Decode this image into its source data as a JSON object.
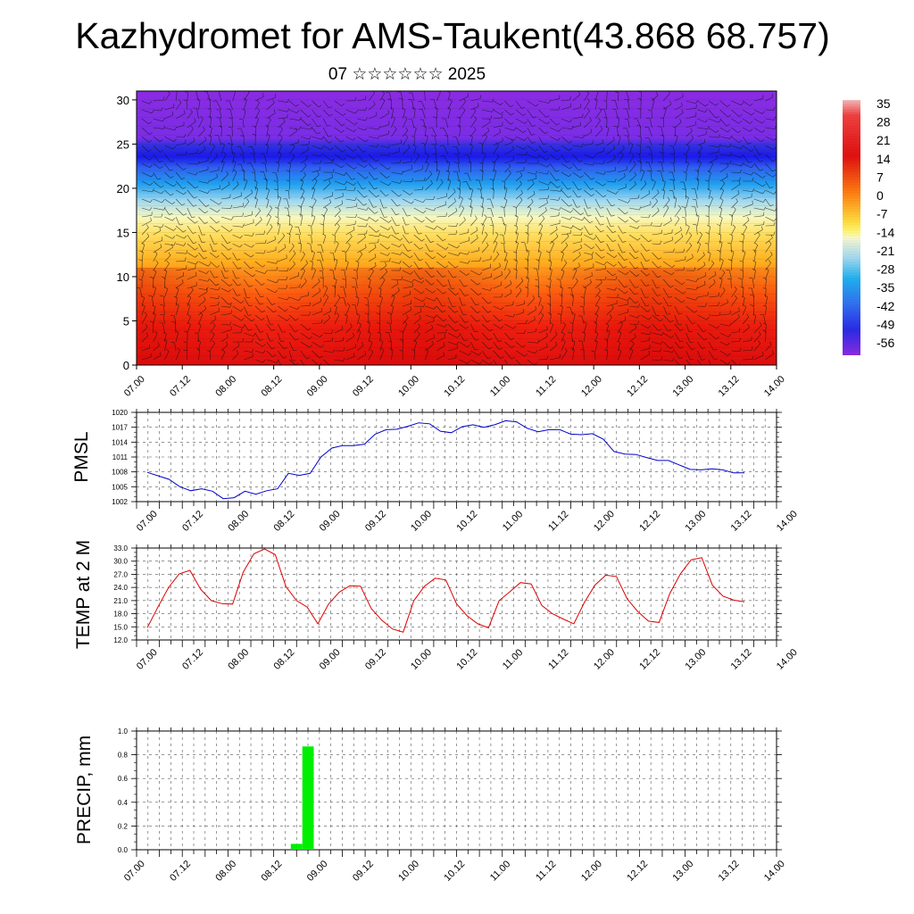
{
  "title": "Kazhydromet for AMS-Taukent(43.868 68.757)",
  "subtitle": "07 ☆☆☆☆☆☆ 2025",
  "colorbar": {
    "labels": [
      "35",
      "28",
      "21",
      "14",
      "7",
      "0",
      "-7",
      "-14",
      "-21",
      "-28",
      "-35",
      "-42",
      "-49",
      "-56"
    ]
  },
  "chart_data": [
    {
      "type": "heatmap",
      "name_ref": "temperature-height-section",
      "title": "",
      "xlabel": "",
      "ylabel": "",
      "x_ticks": [
        "07.00",
        "07.12",
        "08.00",
        "08.12",
        "09.00",
        "09.12",
        "10.00",
        "10.12",
        "11.00",
        "11.12",
        "12.00",
        "12.12",
        "13.00",
        "13.12",
        "14.00"
      ],
      "ylim": [
        0,
        31
      ],
      "y_ticks": [
        "0",
        "5",
        "10",
        "15",
        "20",
        "25",
        "30"
      ],
      "value_range": [
        -60,
        35
      ],
      "overlay": "wind barbs",
      "description_of_field": "temperature vs level; warm near surface, coldest band near level 24, slightly warmer above"
    },
    {
      "type": "line",
      "ylabel": "PMSL",
      "ylim": [
        1002,
        1020
      ],
      "y_ticks": [
        "1002",
        "1005",
        "1008",
        "1011",
        "1014",
        "1017",
        "1020"
      ],
      "x_ticks": [
        "07.00",
        "07.12",
        "08.00",
        "08.12",
        "09.00",
        "09.12",
        "10.00",
        "10.12",
        "11.00",
        "11.12",
        "12.00",
        "12.12",
        "13.00",
        "13.12",
        "14.00"
      ],
      "color": "#0000cc",
      "series": [
        {
          "values": [
            1007.9,
            1007.2,
            1006.5,
            1005.0,
            1004.2,
            1004.6,
            1004.1,
            1002.6,
            1002.8,
            1004.1,
            1003.5,
            1004.2,
            1004.6,
            1007.7,
            1007.3,
            1007.7,
            1011.0,
            1012.8,
            1013.3,
            1013.3,
            1013.6,
            1015.6,
            1016.5,
            1016.6,
            1017.2,
            1017.9,
            1017.7,
            1016.2,
            1015.9,
            1017.1,
            1017.5,
            1017.0,
            1017.5,
            1018.3,
            1018.1,
            1016.8,
            1016.1,
            1016.5,
            1016.5,
            1015.6,
            1015.5,
            1015.7,
            1014.6,
            1012.1,
            1011.6,
            1011.5,
            1010.9,
            1010.3,
            1010.3,
            1009.4,
            1008.5,
            1008.4,
            1008.6,
            1008.4,
            1007.8,
            1007.8
          ]
        }
      ]
    },
    {
      "type": "line",
      "ylabel": "TEMP at 2 M",
      "ylim": [
        12,
        33
      ],
      "y_ticks": [
        "12.0",
        "15.0",
        "18.0",
        "21.0",
        "24.0",
        "27.0",
        "30.0",
        "33.0"
      ],
      "x_ticks": [
        "07.00",
        "07.12",
        "08.00",
        "08.12",
        "09.00",
        "09.12",
        "10.00",
        "10.12",
        "11.00",
        "11.12",
        "12.00",
        "12.12",
        "13.00",
        "13.12",
        "14.00"
      ],
      "color": "#dd0000",
      "series": [
        {
          "values": [
            14.8,
            19.5,
            24.0,
            27.1,
            27.9,
            23.6,
            21.0,
            20.3,
            20.2,
            27.5,
            31.7,
            32.8,
            31.5,
            24.2,
            21.0,
            19.5,
            15.7,
            20.2,
            22.9,
            24.4,
            24.3,
            19.2,
            16.5,
            14.5,
            13.8,
            21.0,
            24.3,
            26.1,
            25.7,
            20.3,
            17.5,
            15.7,
            14.8,
            21.0,
            23.0,
            25.1,
            24.8,
            19.9,
            18.0,
            16.8,
            15.7,
            20.6,
            24.6,
            26.8,
            26.5,
            21.4,
            18.5,
            16.3,
            16.0,
            22.6,
            27.1,
            30.3,
            30.8,
            24.5,
            22.0,
            21.1,
            20.7
          ]
        }
      ]
    },
    {
      "type": "bar",
      "ylabel": "PRECIP, mm",
      "ylim": [
        0,
        1.0
      ],
      "y_ticks": [
        "0.0",
        "0.2",
        "0.4",
        "0.6",
        "0.8",
        "1.0"
      ],
      "x_ticks": [
        "07.00",
        "07.12",
        "08.00",
        "08.12",
        "09.00",
        "09.12",
        "10.00",
        "10.12",
        "11.00",
        "11.12",
        "12.00",
        "12.12",
        "13.00",
        "13.12",
        "14.00"
      ],
      "color": "#00ee00",
      "bars": [
        {
          "x": "08.18",
          "value": 0.05
        },
        {
          "x": "08.21",
          "value": 0.87
        }
      ]
    }
  ]
}
